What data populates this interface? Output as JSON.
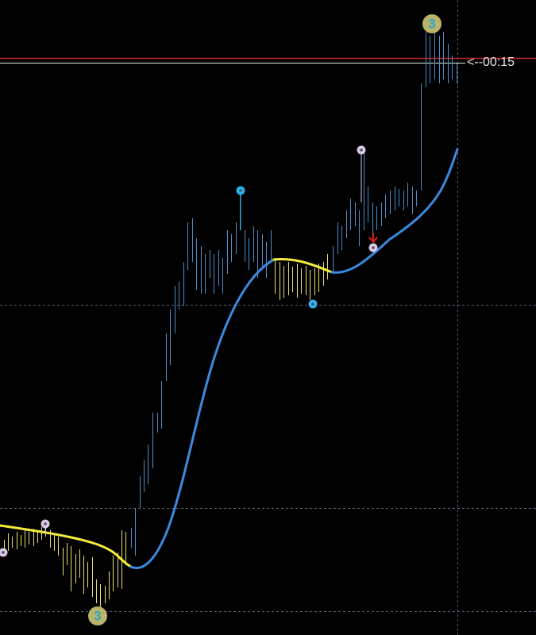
{
  "timer_label": "<--00:15",
  "signals": [
    {
      "label": "3"
    },
    {
      "label": "3"
    }
  ]
}
